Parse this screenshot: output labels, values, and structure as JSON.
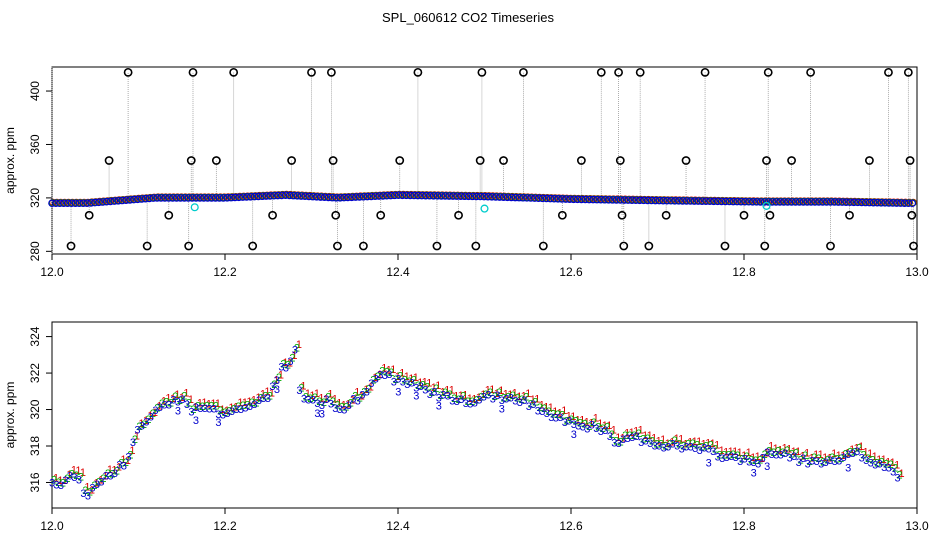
{
  "figure": {
    "title": "SPL_060612  CO2 Timeseries"
  },
  "colors": {
    "axis": "#000000",
    "series1": "#dd0000",
    "series2": "#00aa00",
    "series3": "#0000cc",
    "outlier": "#000000",
    "cyan": "#00cccc",
    "dropline": "#9a9a9a"
  },
  "chart_data": [
    {
      "type": "scatter",
      "ylabel": "approx. ppm",
      "xlim": [
        12.0,
        13.0
      ],
      "ylim": [
        278,
        418
      ],
      "xticks": [
        12.0,
        12.2,
        12.4,
        12.6,
        12.8,
        13.0
      ],
      "xtick_labels": [
        "12.0",
        "12.2",
        "12.4",
        "12.6",
        "12.8",
        "13.0"
      ],
      "yticks": [
        280,
        320,
        360,
        400
      ],
      "ytick_labels": [
        "280",
        "320",
        "360",
        "400"
      ],
      "baseline_knots": [
        [
          12.0,
          316
        ],
        [
          12.04,
          316
        ],
        [
          12.08,
          318
        ],
        [
          12.12,
          320
        ],
        [
          12.2,
          320
        ],
        [
          12.27,
          322
        ],
        [
          12.3,
          321
        ],
        [
          12.33,
          320
        ],
        [
          12.4,
          322
        ],
        [
          12.5,
          321
        ],
        [
          12.6,
          319
        ],
        [
          12.7,
          318
        ],
        [
          12.82,
          317
        ],
        [
          12.9,
          317
        ],
        [
          12.99,
          316
        ]
      ],
      "outliers": [
        {
          "x": 12.022,
          "y": 284
        },
        {
          "x": 12.043,
          "y": 307
        },
        {
          "x": 12.066,
          "y": 348
        },
        {
          "x": 12.088,
          "y": 414
        },
        {
          "x": 12.11,
          "y": 284
        },
        {
          "x": 12.135,
          "y": 307
        },
        {
          "x": 12.158,
          "y": 284
        },
        {
          "x": 12.161,
          "y": 348
        },
        {
          "x": 12.163,
          "y": 414
        },
        {
          "x": 12.19,
          "y": 348
        },
        {
          "x": 12.21,
          "y": 414
        },
        {
          "x": 12.232,
          "y": 284
        },
        {
          "x": 12.255,
          "y": 307
        },
        {
          "x": 12.277,
          "y": 348
        },
        {
          "x": 12.3,
          "y": 414
        },
        {
          "x": 12.323,
          "y": 414
        },
        {
          "x": 12.325,
          "y": 348
        },
        {
          "x": 12.328,
          "y": 307
        },
        {
          "x": 12.33,
          "y": 284
        },
        {
          "x": 12.36,
          "y": 284
        },
        {
          "x": 12.38,
          "y": 307
        },
        {
          "x": 12.402,
          "y": 348
        },
        {
          "x": 12.423,
          "y": 414
        },
        {
          "x": 12.445,
          "y": 284
        },
        {
          "x": 12.47,
          "y": 307
        },
        {
          "x": 12.49,
          "y": 284
        },
        {
          "x": 12.495,
          "y": 348
        },
        {
          "x": 12.497,
          "y": 414
        },
        {
          "x": 12.522,
          "y": 348
        },
        {
          "x": 12.545,
          "y": 414
        },
        {
          "x": 12.568,
          "y": 284
        },
        {
          "x": 12.59,
          "y": 307
        },
        {
          "x": 12.612,
          "y": 348
        },
        {
          "x": 12.635,
          "y": 414
        },
        {
          "x": 12.655,
          "y": 414
        },
        {
          "x": 12.657,
          "y": 348
        },
        {
          "x": 12.659,
          "y": 307
        },
        {
          "x": 12.661,
          "y": 284
        },
        {
          "x": 12.68,
          "y": 414
        },
        {
          "x": 12.69,
          "y": 284
        },
        {
          "x": 12.71,
          "y": 307
        },
        {
          "x": 12.733,
          "y": 348
        },
        {
          "x": 12.755,
          "y": 414
        },
        {
          "x": 12.778,
          "y": 284
        },
        {
          "x": 12.8,
          "y": 307
        },
        {
          "x": 12.824,
          "y": 284
        },
        {
          "x": 12.826,
          "y": 348
        },
        {
          "x": 12.828,
          "y": 414
        },
        {
          "x": 12.83,
          "y": 307
        },
        {
          "x": 12.855,
          "y": 348
        },
        {
          "x": 12.877,
          "y": 414
        },
        {
          "x": 12.9,
          "y": 284
        },
        {
          "x": 12.922,
          "y": 307
        },
        {
          "x": 12.945,
          "y": 348
        },
        {
          "x": 12.967,
          "y": 414
        },
        {
          "x": 12.99,
          "y": 414
        },
        {
          "x": 12.992,
          "y": 348
        },
        {
          "x": 12.994,
          "y": 307
        },
        {
          "x": 12.996,
          "y": 284
        }
      ],
      "cyan_points": [
        {
          "x": 12.165,
          "y": 313
        },
        {
          "x": 12.5,
          "y": 312
        },
        {
          "x": 12.826,
          "y": 314
        }
      ]
    },
    {
      "type": "scatter",
      "ylabel": "approx. ppm",
      "xlim": [
        12.0,
        13.0
      ],
      "ylim": [
        314.6,
        324.8
      ],
      "xticks": [
        12.0,
        12.2,
        12.4,
        12.6,
        12.8,
        13.0
      ],
      "xtick_labels": [
        "12.0",
        "12.2",
        "12.4",
        "12.6",
        "12.8",
        "13.0"
      ],
      "yticks": [
        316,
        318,
        320,
        322,
        324
      ],
      "ytick_labels": [
        "316",
        "318",
        "320",
        "322",
        "324"
      ],
      "marker_labels": [
        "1",
        "2",
        "3"
      ],
      "series_knots": [
        [
          12.0,
          316.0
        ],
        [
          12.01,
          315.8
        ],
        [
          12.02,
          316.3
        ],
        [
          12.03,
          316.5
        ],
        [
          12.038,
          315.2
        ],
        [
          12.05,
          315.9
        ],
        [
          12.07,
          316.6
        ],
        [
          12.085,
          317.0
        ],
        [
          12.095,
          318.5
        ],
        [
          12.11,
          319.5
        ],
        [
          12.13,
          320.4
        ],
        [
          12.15,
          320.6
        ],
        [
          12.158,
          320.2
        ],
        [
          12.162,
          320.0
        ],
        [
          12.18,
          320.1
        ],
        [
          12.2,
          319.8
        ],
        [
          12.23,
          320.2
        ],
        [
          12.25,
          320.8
        ],
        [
          12.265,
          322.2
        ],
        [
          12.275,
          322.6
        ],
        [
          12.28,
          323.6
        ],
        [
          12.285,
          321.0
        ],
        [
          12.29,
          320.6
        ],
        [
          12.3,
          320.6
        ],
        [
          12.31,
          320.3
        ],
        [
          12.318,
          320.6
        ],
        [
          12.323,
          320.2
        ],
        [
          12.33,
          319.8
        ],
        [
          12.345,
          320.4
        ],
        [
          12.36,
          320.7
        ],
        [
          12.37,
          321.4
        ],
        [
          12.38,
          322.0
        ],
        [
          12.4,
          321.6
        ],
        [
          12.42,
          321.4
        ],
        [
          12.44,
          320.9
        ],
        [
          12.46,
          320.7
        ],
        [
          12.48,
          320.5
        ],
        [
          12.495,
          320.4
        ],
        [
          12.5,
          320.8
        ],
        [
          12.53,
          320.6
        ],
        [
          12.55,
          320.3
        ],
        [
          12.57,
          319.9
        ],
        [
          12.6,
          319.3
        ],
        [
          12.62,
          319.1
        ],
        [
          12.64,
          318.7
        ],
        [
          12.655,
          318.0
        ],
        [
          12.665,
          318.5
        ],
        [
          12.68,
          318.4
        ],
        [
          12.7,
          318.1
        ],
        [
          12.72,
          318.0
        ],
        [
          12.74,
          317.9
        ],
        [
          12.76,
          317.7
        ],
        [
          12.78,
          317.4
        ],
        [
          12.8,
          317.3
        ],
        [
          12.815,
          317.1
        ],
        [
          12.83,
          317.6
        ],
        [
          12.85,
          317.5
        ],
        [
          12.87,
          317.2
        ],
        [
          12.89,
          317.0
        ],
        [
          12.91,
          317.2
        ],
        [
          12.93,
          317.6
        ],
        [
          12.95,
          317.1
        ],
        [
          12.97,
          316.8
        ],
        [
          12.98,
          316.0
        ]
      ]
    }
  ]
}
